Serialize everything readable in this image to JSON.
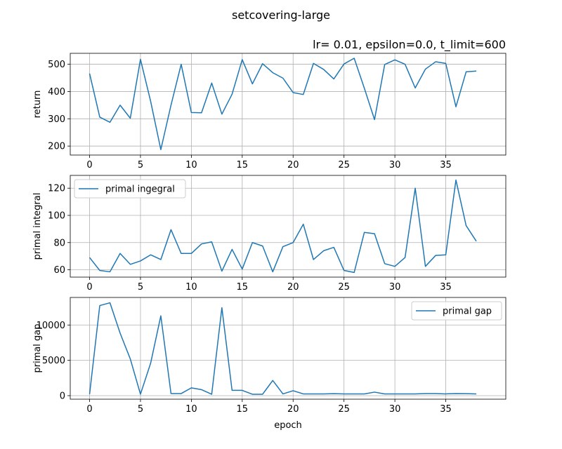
{
  "figure": {
    "suptitle": "setcovering-large",
    "subtitle": "lr= 0.01, epsilon=0.0, t_limit=600",
    "xlabel": "epoch"
  },
  "chart_data": [
    {
      "type": "line",
      "ylabel": "return",
      "xlim": [
        -1.9,
        40.9
      ],
      "ylim": [
        167,
        540
      ],
      "xticks": [
        0,
        5,
        10,
        15,
        20,
        25,
        30,
        35
      ],
      "yticks": [
        200,
        300,
        400,
        500
      ],
      "grid": true,
      "legend": null,
      "series": [
        {
          "color": "#1f77b4",
          "x": [
            0,
            1,
            2,
            3,
            4,
            5,
            6,
            7,
            8,
            9,
            10,
            11,
            12,
            13,
            14,
            15,
            16,
            17,
            18,
            19,
            20,
            21,
            22,
            23,
            24,
            25,
            26,
            27,
            28,
            29,
            30,
            31,
            32,
            33,
            34,
            35,
            36,
            37,
            38
          ],
          "values": [
            466,
            306,
            287,
            350,
            302,
            518,
            364,
            187,
            350,
            500,
            323,
            322,
            431,
            317,
            390,
            517,
            428,
            502,
            469,
            449,
            396,
            389,
            503,
            481,
            446,
            501,
            522,
            412,
            297,
            499,
            516,
            500,
            413,
            482,
            509,
            503,
            344,
            472,
            475
          ]
        }
      ]
    },
    {
      "type": "line",
      "ylabel": "primal integral",
      "xlim": [
        -1.9,
        40.9
      ],
      "ylim": [
        54.6,
        129.4
      ],
      "xticks": [
        0,
        5,
        10,
        15,
        20,
        25,
        30,
        35
      ],
      "yticks": [
        60,
        80,
        100,
        120
      ],
      "grid": true,
      "legend": "upper-left",
      "series": [
        {
          "name": "primal ingegral",
          "color": "#1f77b4",
          "x": [
            0,
            1,
            2,
            3,
            4,
            5,
            6,
            7,
            8,
            9,
            10,
            11,
            12,
            13,
            14,
            15,
            16,
            17,
            18,
            19,
            20,
            21,
            22,
            23,
            24,
            25,
            26,
            27,
            28,
            29,
            30,
            31,
            32,
            33,
            34,
            35,
            36,
            37,
            38
          ],
          "values": [
            69,
            59.5,
            58.5,
            72,
            64,
            66.5,
            71,
            67.5,
            89.5,
            72,
            72,
            79,
            80.5,
            59,
            75,
            60.5,
            80,
            77.5,
            58.5,
            77,
            80,
            93.5,
            67.5,
            74,
            76.5,
            59.5,
            58,
            87.5,
            86.5,
            64.5,
            62.5,
            69,
            120,
            62.5,
            70.5,
            71,
            126,
            92.5,
            81
          ]
        }
      ]
    },
    {
      "type": "line",
      "ylabel": "primal gap",
      "xlim": [
        -1.9,
        40.9
      ],
      "ylim": [
        -500,
        13900
      ],
      "xticks": [
        0,
        5,
        10,
        15,
        20,
        25,
        30,
        35
      ],
      "yticks": [
        0,
        5000,
        10000
      ],
      "grid": true,
      "legend": "upper-right",
      "series": [
        {
          "name": "primal gap",
          "color": "#1f77b4",
          "x": [
            0,
            1,
            2,
            3,
            4,
            5,
            6,
            7,
            8,
            9,
            10,
            11,
            12,
            13,
            14,
            15,
            16,
            17,
            18,
            19,
            20,
            21,
            22,
            23,
            24,
            25,
            26,
            27,
            28,
            29,
            30,
            31,
            32,
            33,
            34,
            35,
            36,
            37,
            38
          ],
          "values": [
            200,
            12750,
            13150,
            8850,
            5200,
            200,
            4600,
            11300,
            300,
            300,
            1100,
            850,
            200,
            12450,
            750,
            750,
            200,
            200,
            2150,
            250,
            700,
            250,
            250,
            250,
            280,
            250,
            250,
            250,
            500,
            250,
            250,
            250,
            250,
            300,
            300,
            250,
            300,
            280,
            250
          ]
        }
      ]
    }
  ]
}
